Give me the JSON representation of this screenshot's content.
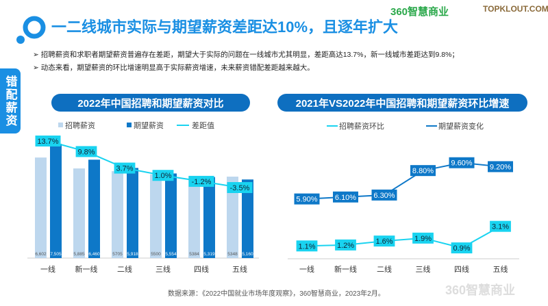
{
  "header": {
    "title": "一二线城市实际与期望薪资差距达10%，且逐年扩大",
    "logo_360": "360智慧商业",
    "logo_topklout": "TOPKLOUT.COM"
  },
  "bullets": [
    "➢ 招聘薪资和求职者期望薪资普遍存在差距，期望大于实际的问题在一线城市尤其明显，差距高达13.7%，新一线城市差距达到9.8%；",
    "➢ 动态来看，期望薪资的环比增速明显高于实际薪资增速，未来薪资错配差距越来越大。"
  ],
  "side_tab": "错配薪资",
  "source": "数据来源：《2022中国就业市场年度观察》，360智慧商业，2023年2月。",
  "watermark": "360智慧商业",
  "colors": {
    "light": "#bdd7ee",
    "dark": "#0e78c8",
    "cyan": "#19d3f0"
  },
  "chart_data": [
    {
      "type": "bar",
      "title": "2022年中国招聘和期望薪资对比",
      "categories": [
        "一线",
        "新一线",
        "二线",
        "三线",
        "四线",
        "五线"
      ],
      "series": [
        {
          "name": "招聘薪资",
          "values": [
            6602,
            5885,
            5705,
            5500,
            5384,
            5348
          ],
          "labels": [
            "6,602",
            "5,885",
            "5705",
            "5500",
            "5384",
            "5348"
          ]
        },
        {
          "name": "期望薪资",
          "values": [
            7505,
            6460,
            5918,
            5554,
            5319,
            5160
          ],
          "labels": [
            "7,505",
            "6,460",
            "5,918",
            "5,554",
            "5,319",
            "5,160"
          ]
        },
        {
          "name": "差距值",
          "type": "line",
          "values": [
            13.7,
            9.8,
            3.7,
            1.0,
            -1.2,
            -3.5
          ],
          "labels": [
            "13.7%",
            "9.8%",
            "3.7%",
            "1.0%",
            "-1.2%",
            "-3.5%"
          ]
        }
      ],
      "legend": "top"
    },
    {
      "type": "line",
      "title": "2021年VS2022年中国招聘和期望薪资环比增速",
      "categories": [
        "一线",
        "新一线",
        "二线",
        "三线",
        "四线",
        "五线"
      ],
      "series": [
        {
          "name": "招聘薪资环比",
          "values": [
            1.1,
            1.2,
            1.6,
            1.9,
            0.9,
            3.1
          ],
          "labels": [
            "1.1%",
            "1.2%",
            "1.6%",
            "1.9%",
            "0.9%",
            "3.1%"
          ]
        },
        {
          "name": "期望薪资变化",
          "values": [
            5.9,
            6.1,
            6.3,
            8.8,
            9.6,
            9.2
          ],
          "labels": [
            "5.90%",
            "6.10%",
            "6.30%",
            "8.80%",
            "9.60%",
            "9.20%"
          ]
        }
      ],
      "legend": "top"
    }
  ]
}
